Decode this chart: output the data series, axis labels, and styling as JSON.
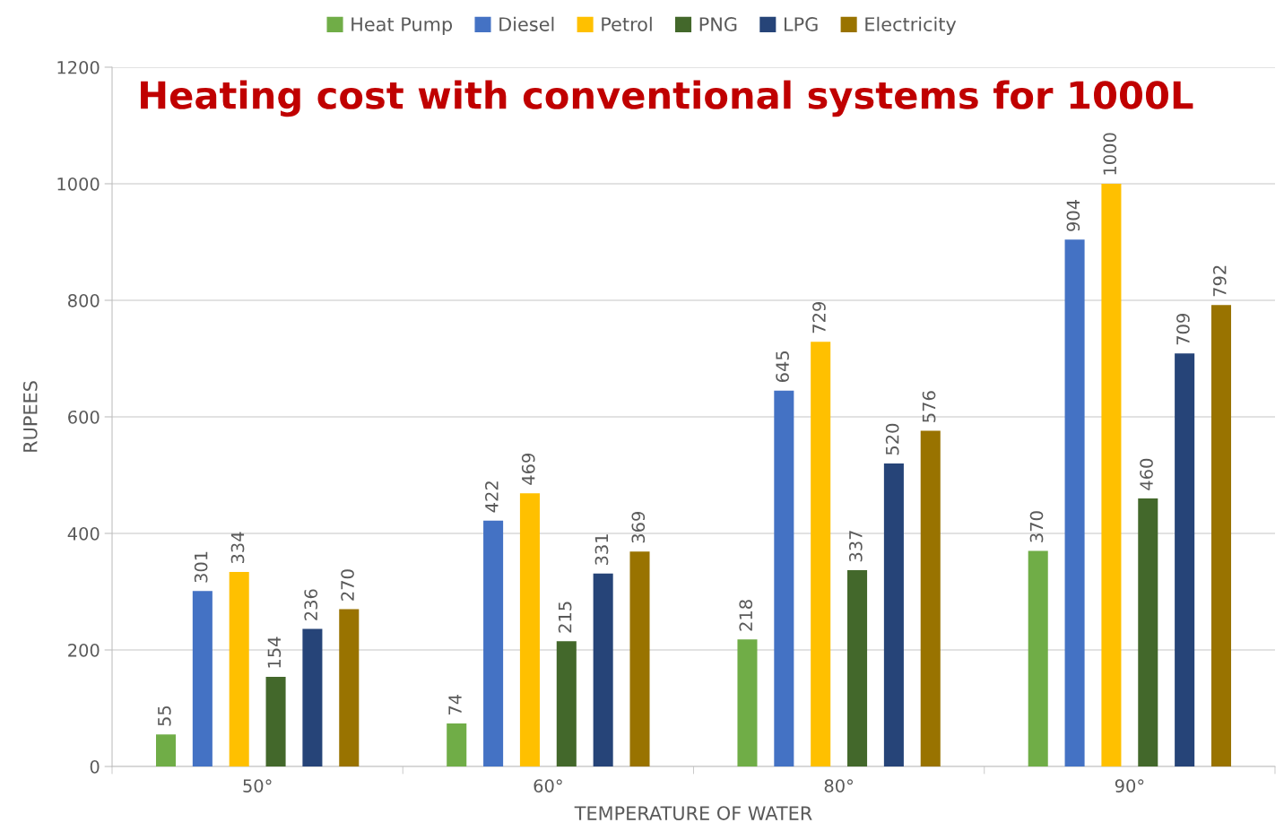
{
  "chart_data": {
    "type": "bar",
    "title": "Heating cost with conventional systems for 1000L",
    "xlabel": "TEMPERATURE OF WATER",
    "ylabel": "RUPEES",
    "categories": [
      "50°",
      "60°",
      "80°",
      "90°"
    ],
    "series": [
      {
        "name": "Heat Pump",
        "color": "#70ad47",
        "values": [
          55,
          74,
          218,
          370
        ]
      },
      {
        "name": "Diesel",
        "color": "#4472c4",
        "values": [
          301,
          422,
          645,
          904
        ]
      },
      {
        "name": "Petrol",
        "color": "#ffc000",
        "values": [
          334,
          469,
          729,
          1000
        ]
      },
      {
        "name": "PNG",
        "color": "#43682b",
        "values": [
          154,
          215,
          337,
          460
        ]
      },
      {
        "name": "LPG",
        "color": "#264478",
        "values": [
          236,
          331,
          520,
          709
        ]
      },
      {
        "name": "Electricity",
        "color": "#997300",
        "values": [
          270,
          369,
          576,
          792
        ]
      }
    ],
    "ylim": [
      0,
      1200
    ],
    "yticks": [
      0,
      200,
      400,
      600,
      800,
      1000,
      1200
    ],
    "grid": "y",
    "legend": "top",
    "data_labels": true
  }
}
